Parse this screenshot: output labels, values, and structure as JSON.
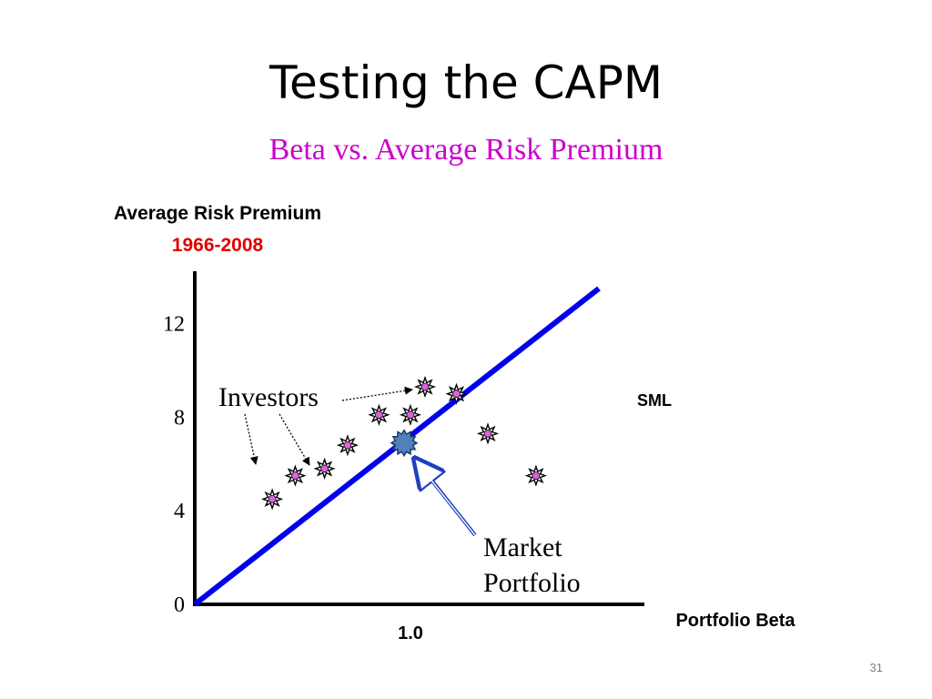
{
  "slide": {
    "title": "Testing the CAPM",
    "subtitle": "Beta vs. Average Risk Premium",
    "subtitle_color": "#cc00cc",
    "page_number": "31"
  },
  "chart_data": {
    "type": "scatter",
    "title": "Beta vs. Average Risk Premium",
    "ylabel": "Average Risk Premium",
    "ylabel_period": "1966-2008",
    "ylabel_period_color": "#e00000",
    "xlabel": "Portfolio Beta",
    "y_ticks": [
      {
        "value": 0,
        "label": "0"
      },
      {
        "value": 4,
        "label": "4"
      },
      {
        "value": 8,
        "label": "8"
      },
      {
        "value": 12,
        "label": "12"
      }
    ],
    "x_ticks": [
      {
        "value": 1.0,
        "label": "1.0"
      }
    ],
    "xlim": [
      0,
      2.1
    ],
    "ylim": [
      0,
      13.7
    ],
    "line": {
      "name": "SML",
      "color": "#0000ee",
      "points": [
        [
          0,
          0
        ],
        [
          1.9,
          13.2
        ]
      ]
    },
    "series": [
      {
        "name": "Investors",
        "marker": "star",
        "color": "#e060e0",
        "points": [
          [
            0.37,
            4.5
          ],
          [
            0.48,
            5.5
          ],
          [
            0.62,
            5.8
          ],
          [
            0.73,
            6.8
          ],
          [
            0.88,
            8.1
          ],
          [
            1.03,
            8.1
          ],
          [
            1.1,
            9.3
          ],
          [
            1.25,
            9.0
          ],
          [
            1.4,
            7.3
          ],
          [
            1.63,
            5.5
          ]
        ]
      },
      {
        "name": "Market Portfolio",
        "marker": "circle",
        "color": "#4f81bd",
        "points": [
          [
            1.0,
            6.9
          ]
        ]
      }
    ],
    "annotations": {
      "investors_label": "Investors",
      "market_label_line1": "Market",
      "market_label_line2": "Portfolio",
      "sml_label": "SML"
    }
  }
}
